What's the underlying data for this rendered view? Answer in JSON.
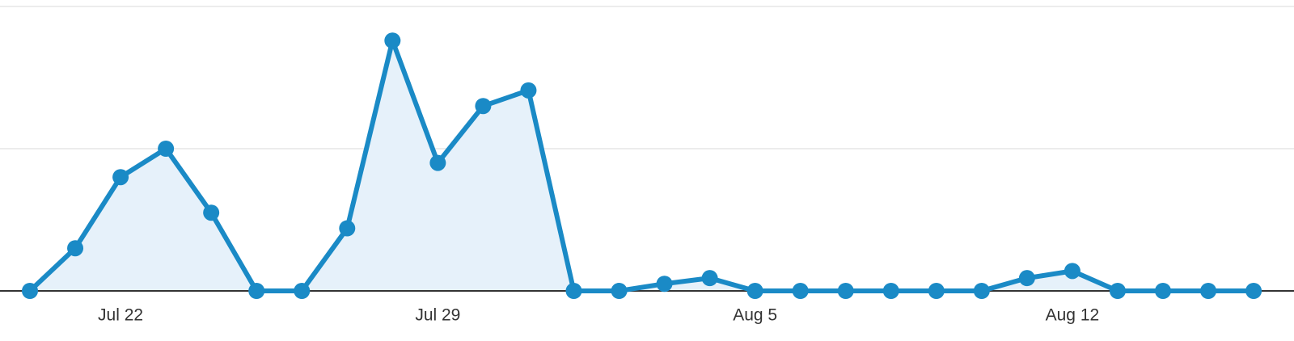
{
  "chart_data": {
    "type": "line",
    "categories": [
      null,
      null,
      "Jul 22",
      null,
      null,
      null,
      null,
      null,
      null,
      "Jul 29",
      null,
      null,
      null,
      null,
      null,
      null,
      "Aug 5",
      null,
      null,
      null,
      null,
      null,
      null,
      "Aug 12",
      null,
      null,
      null,
      null
    ],
    "values": [
      0,
      0.3,
      0.8,
      1.0,
      0.55,
      0,
      0,
      0.44,
      1.76,
      0.9,
      1.3,
      1.41,
      0,
      0,
      0.05,
      0.09,
      0,
      0,
      0,
      0,
      0,
      0,
      0.09,
      0.14,
      0,
      0,
      0,
      0
    ],
    "color": "#1a8ac6",
    "ylim": [
      0,
      2
    ],
    "yticks": [
      0,
      1,
      2
    ],
    "grid": true
  }
}
